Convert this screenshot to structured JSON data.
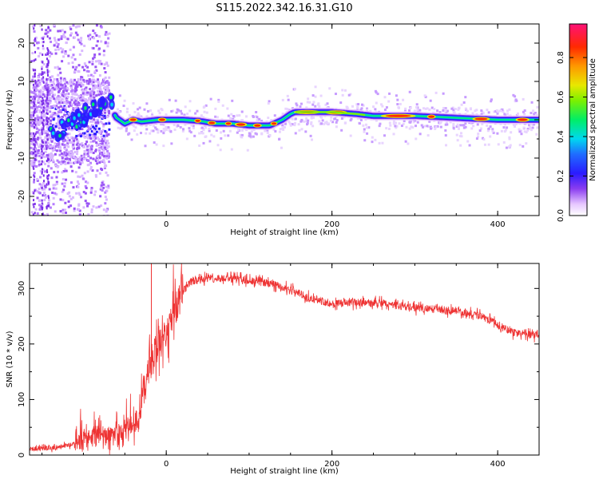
{
  "title": "S115.2022.342.16.31.G10",
  "chart_data": [
    {
      "type": "heatmap",
      "xlabel": "Height of straight line (km)",
      "ylabel": "Frequency (Hz)",
      "xlim": [
        -165,
        450
      ],
      "ylim": [
        -25,
        25
      ],
      "x_ticks": [
        0,
        200,
        400
      ],
      "y_ticks": [
        -20,
        -10,
        0,
        10,
        20
      ],
      "colorbar": {
        "label": "Normalized spectral amplitude",
        "range": [
          0,
          0.97
        ],
        "ticks": [
          0.0,
          0.2,
          0.4,
          0.6,
          0.8
        ]
      },
      "ridge_frequency_hz": {
        "x": [
          -70,
          -60,
          -50,
          -40,
          -30,
          -10,
          20,
          40,
          60,
          80,
          100,
          110,
          125,
          140,
          150,
          155,
          170,
          200,
          230,
          250,
          300,
          350,
          400,
          450
        ],
        "y": [
          4,
          0.5,
          -1,
          0,
          -0.5,
          0,
          0,
          -0.3,
          -1,
          -1,
          -1.5,
          -1.5,
          -1.5,
          0,
          1.5,
          2,
          2,
          2,
          1.5,
          1,
          1,
          0.5,
          0,
          0
        ]
      },
      "scatter_region_km": [
        -165,
        -70
      ]
    },
    {
      "type": "line",
      "xlabel": "Height of straight line (km)",
      "ylabel": "SNR (10 * v/v)",
      "xlim": [
        -165,
        450
      ],
      "ylim": [
        0,
        345
      ],
      "x_ticks": [
        0,
        200,
        400
      ],
      "y_ticks": [
        0,
        100,
        200,
        300
      ],
      "series_color": "#ee3333",
      "trend": {
        "x": [
          -165,
          -140,
          -110,
          -90,
          -60,
          -50,
          -35,
          -25,
          -18,
          -10,
          0,
          10,
          20,
          30,
          50,
          70,
          90,
          110,
          130,
          150,
          170,
          200,
          230,
          260,
          300,
          350,
          380,
          400,
          420,
          450
        ],
        "y": [
          12,
          12,
          20,
          35,
          40,
          40,
          70,
          130,
          170,
          195,
          210,
          260,
          295,
          312,
          318,
          318,
          316,
          313,
          307,
          298,
          285,
          272,
          275,
          273,
          265,
          260,
          250,
          235,
          220,
          215
        ]
      }
    }
  ]
}
